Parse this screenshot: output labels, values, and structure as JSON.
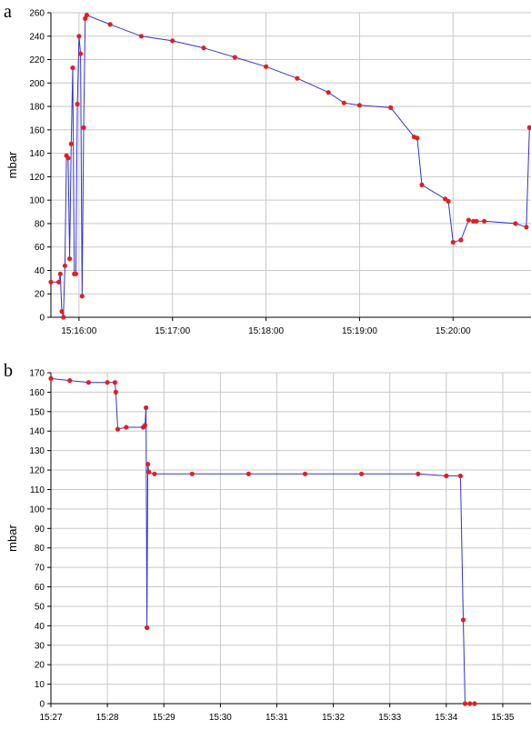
{
  "panel_a_letter": "a",
  "panel_b_letter": "b",
  "colors": {
    "line": "#3333cc",
    "marker": "#e02020",
    "grid": "#c8c8c8",
    "axis": "#000000"
  },
  "chart_data": [
    {
      "type": "line",
      "ylabel": "mbar",
      "ylim": [
        0,
        260
      ],
      "yticks": [
        0,
        20,
        40,
        60,
        80,
        100,
        120,
        140,
        160,
        180,
        200,
        220,
        240,
        260
      ],
      "xlim": [
        "15:15:42",
        "15:20:50"
      ],
      "xticks": [
        "15:16:00",
        "15:17:00",
        "15:18:00",
        "15:19:00",
        "15:20:00"
      ],
      "grid": true,
      "series": [
        {
          "x": [
            "15:15:42",
            "15:15:47",
            "15:15:48",
            "15:15:49",
            "15:15:50",
            "15:15:51",
            "15:15:52",
            "15:15:53",
            "15:15:54",
            "15:15:55",
            "15:15:56",
            "15:15:57",
            "15:15:58",
            "15:15:59",
            "15:16:00",
            "15:16:01",
            "15:16:02",
            "15:16:03",
            "15:16:04",
            "15:16:05",
            "15:16:20",
            "15:16:40",
            "15:17:00",
            "15:17:20",
            "15:17:40",
            "15:18:00",
            "15:18:20",
            "15:18:40",
            "15:18:50",
            "15:19:00",
            "15:19:20",
            "15:19:35",
            "15:19:37",
            "15:19:40",
            "15:19:55",
            "15:19:57",
            "15:20:00",
            "15:20:05",
            "15:20:10",
            "15:20:13",
            "15:20:15",
            "15:20:20",
            "15:20:40",
            "15:20:47",
            "15:20:49",
            "15:20:50"
          ],
          "y": [
            30,
            30,
            37,
            5,
            0,
            44,
            138,
            136,
            50,
            148,
            213,
            37,
            37,
            182,
            240,
            225,
            18,
            162,
            255,
            258,
            250,
            240,
            236,
            230,
            222,
            214,
            204,
            192,
            183,
            181,
            179,
            154,
            153,
            113,
            101,
            99,
            64,
            66,
            83,
            82,
            82,
            82,
            80,
            77,
            162,
            162
          ]
        }
      ]
    },
    {
      "type": "line",
      "ylabel": "mbar",
      "ylim": [
        0,
        170
      ],
      "yticks": [
        0,
        10,
        20,
        30,
        40,
        50,
        60,
        70,
        80,
        90,
        100,
        110,
        120,
        130,
        140,
        150,
        160,
        170
      ],
      "xlim": [
        "15:27",
        "15:35:30"
      ],
      "xticks": [
        "15:27",
        "15:28",
        "15:29",
        "15:30",
        "15:31",
        "15:32",
        "15:33",
        "15:34",
        "15:35"
      ],
      "grid": true,
      "series": [
        {
          "x": [
            "15:27:00",
            "15:27:20",
            "15:27:40",
            "15:28:00",
            "15:28:08",
            "15:28:09",
            "15:28:11",
            "15:28:20",
            "15:28:38",
            "15:28:40",
            "15:28:41",
            "15:28:42",
            "15:28:43",
            "15:28:44",
            "15:28:50",
            "15:29:30",
            "15:30:30",
            "15:31:30",
            "15:32:30",
            "15:33:30",
            "15:34:00",
            "15:34:15",
            "15:34:18",
            "15:34:20",
            "15:34:25",
            "15:34:30"
          ],
          "y": [
            167,
            166,
            165,
            165,
            165,
            160,
            141,
            142,
            142,
            143,
            152,
            39,
            123,
            119,
            118,
            118,
            118,
            118,
            118,
            118,
            117,
            117,
            43,
            0,
            0,
            0
          ]
        }
      ]
    }
  ]
}
